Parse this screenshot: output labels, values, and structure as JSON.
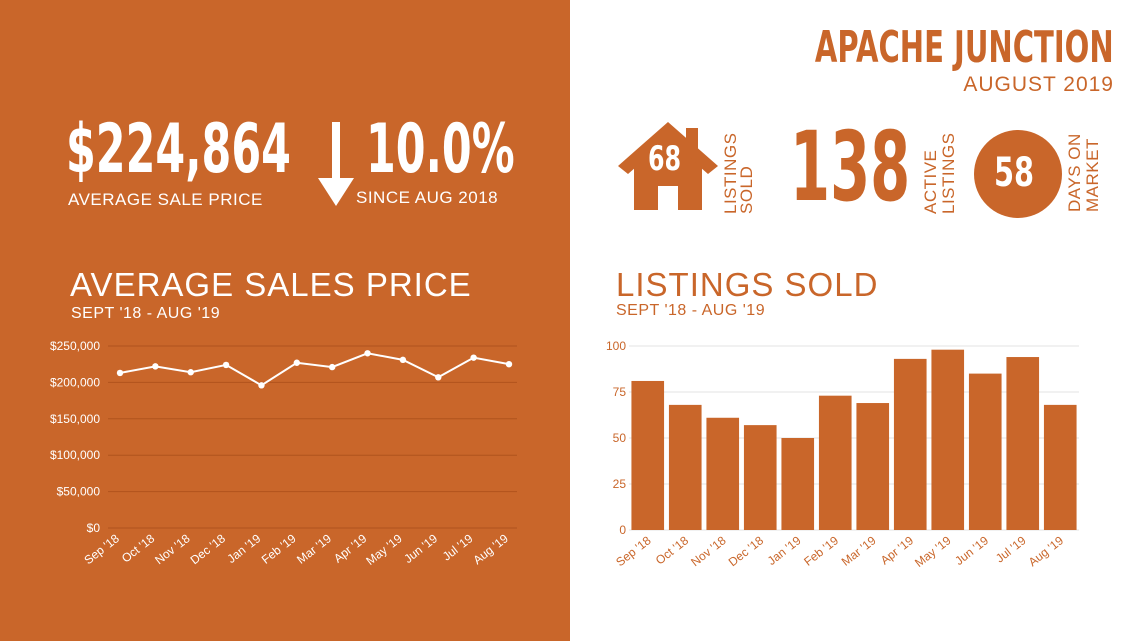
{
  "header": {
    "city": "APACHE JUNCTION",
    "period": "AUGUST 2019"
  },
  "kpis": {
    "avg_sale_price": "$224,864",
    "avg_sale_price_label": "AVERAGE  SALE PRICE",
    "change_pct": "10.0%",
    "change_label": "SINCE AUG 2018",
    "change_direction": "down",
    "listings_sold": "68",
    "listings_sold_label": [
      "LISTINGS",
      "SOLD"
    ],
    "active_listings": "138",
    "active_listings_label": [
      "ACTIVE",
      "LISTINGS"
    ],
    "days_on_market": "58",
    "days_on_market_label": [
      "DAYS ON",
      "MARKET"
    ]
  },
  "icons": {
    "change": "arrow-down-icon",
    "listings_sold": "house-icon",
    "days_on_market": "circle-badge-icon"
  },
  "colors": {
    "accent": "#c9662a",
    "white": "#ffffff"
  },
  "chart_data": [
    {
      "type": "line",
      "title": "AVERAGE SALES PRICE",
      "subtitle": "SEPT '18 - AUG '19",
      "categories": [
        "Sep '18",
        "Oct '18",
        "Nov '18",
        "Dec '18",
        "Jan '19",
        "Feb '19",
        "Mar '19",
        "Apr '19",
        "May '19",
        "Jun '19",
        "Jul '19",
        "Aug '19"
      ],
      "values": [
        213000,
        222000,
        214000,
        224000,
        196000,
        227000,
        221000,
        240000,
        231000,
        207000,
        234000,
        225000
      ],
      "ylim": [
        0,
        250000
      ],
      "yticks": [
        0,
        50000,
        100000,
        150000,
        200000,
        250000
      ],
      "ytick_labels": [
        "$0",
        "$50,000",
        "$100,000",
        "$150,000",
        "$200,000",
        "$250,000"
      ],
      "grid": true,
      "colors": {
        "line": "#ffffff",
        "grid": "#b0531d",
        "text": "#ffffff"
      }
    },
    {
      "type": "bar",
      "title": "LISTINGS SOLD",
      "subtitle": "SEPT '18 - AUG '19",
      "categories": [
        "Sep '18",
        "Oct '18",
        "Nov '18",
        "Dec '18",
        "Jan '19",
        "Feb '19",
        "Mar '19",
        "Apr '19",
        "May '19",
        "Jun '19",
        "Jul '19",
        "Aug '19"
      ],
      "values": [
        81,
        68,
        61,
        57,
        50,
        73,
        69,
        93,
        98,
        85,
        94,
        68
      ],
      "ylim": [
        0,
        100
      ],
      "yticks": [
        0,
        25,
        50,
        75,
        100
      ],
      "ytick_labels": [
        "0",
        "25",
        "50",
        "75",
        "100"
      ],
      "grid": true,
      "colors": {
        "bar": "#c9662a",
        "grid": "#e3e3e3",
        "text": "#c9662a"
      }
    }
  ]
}
